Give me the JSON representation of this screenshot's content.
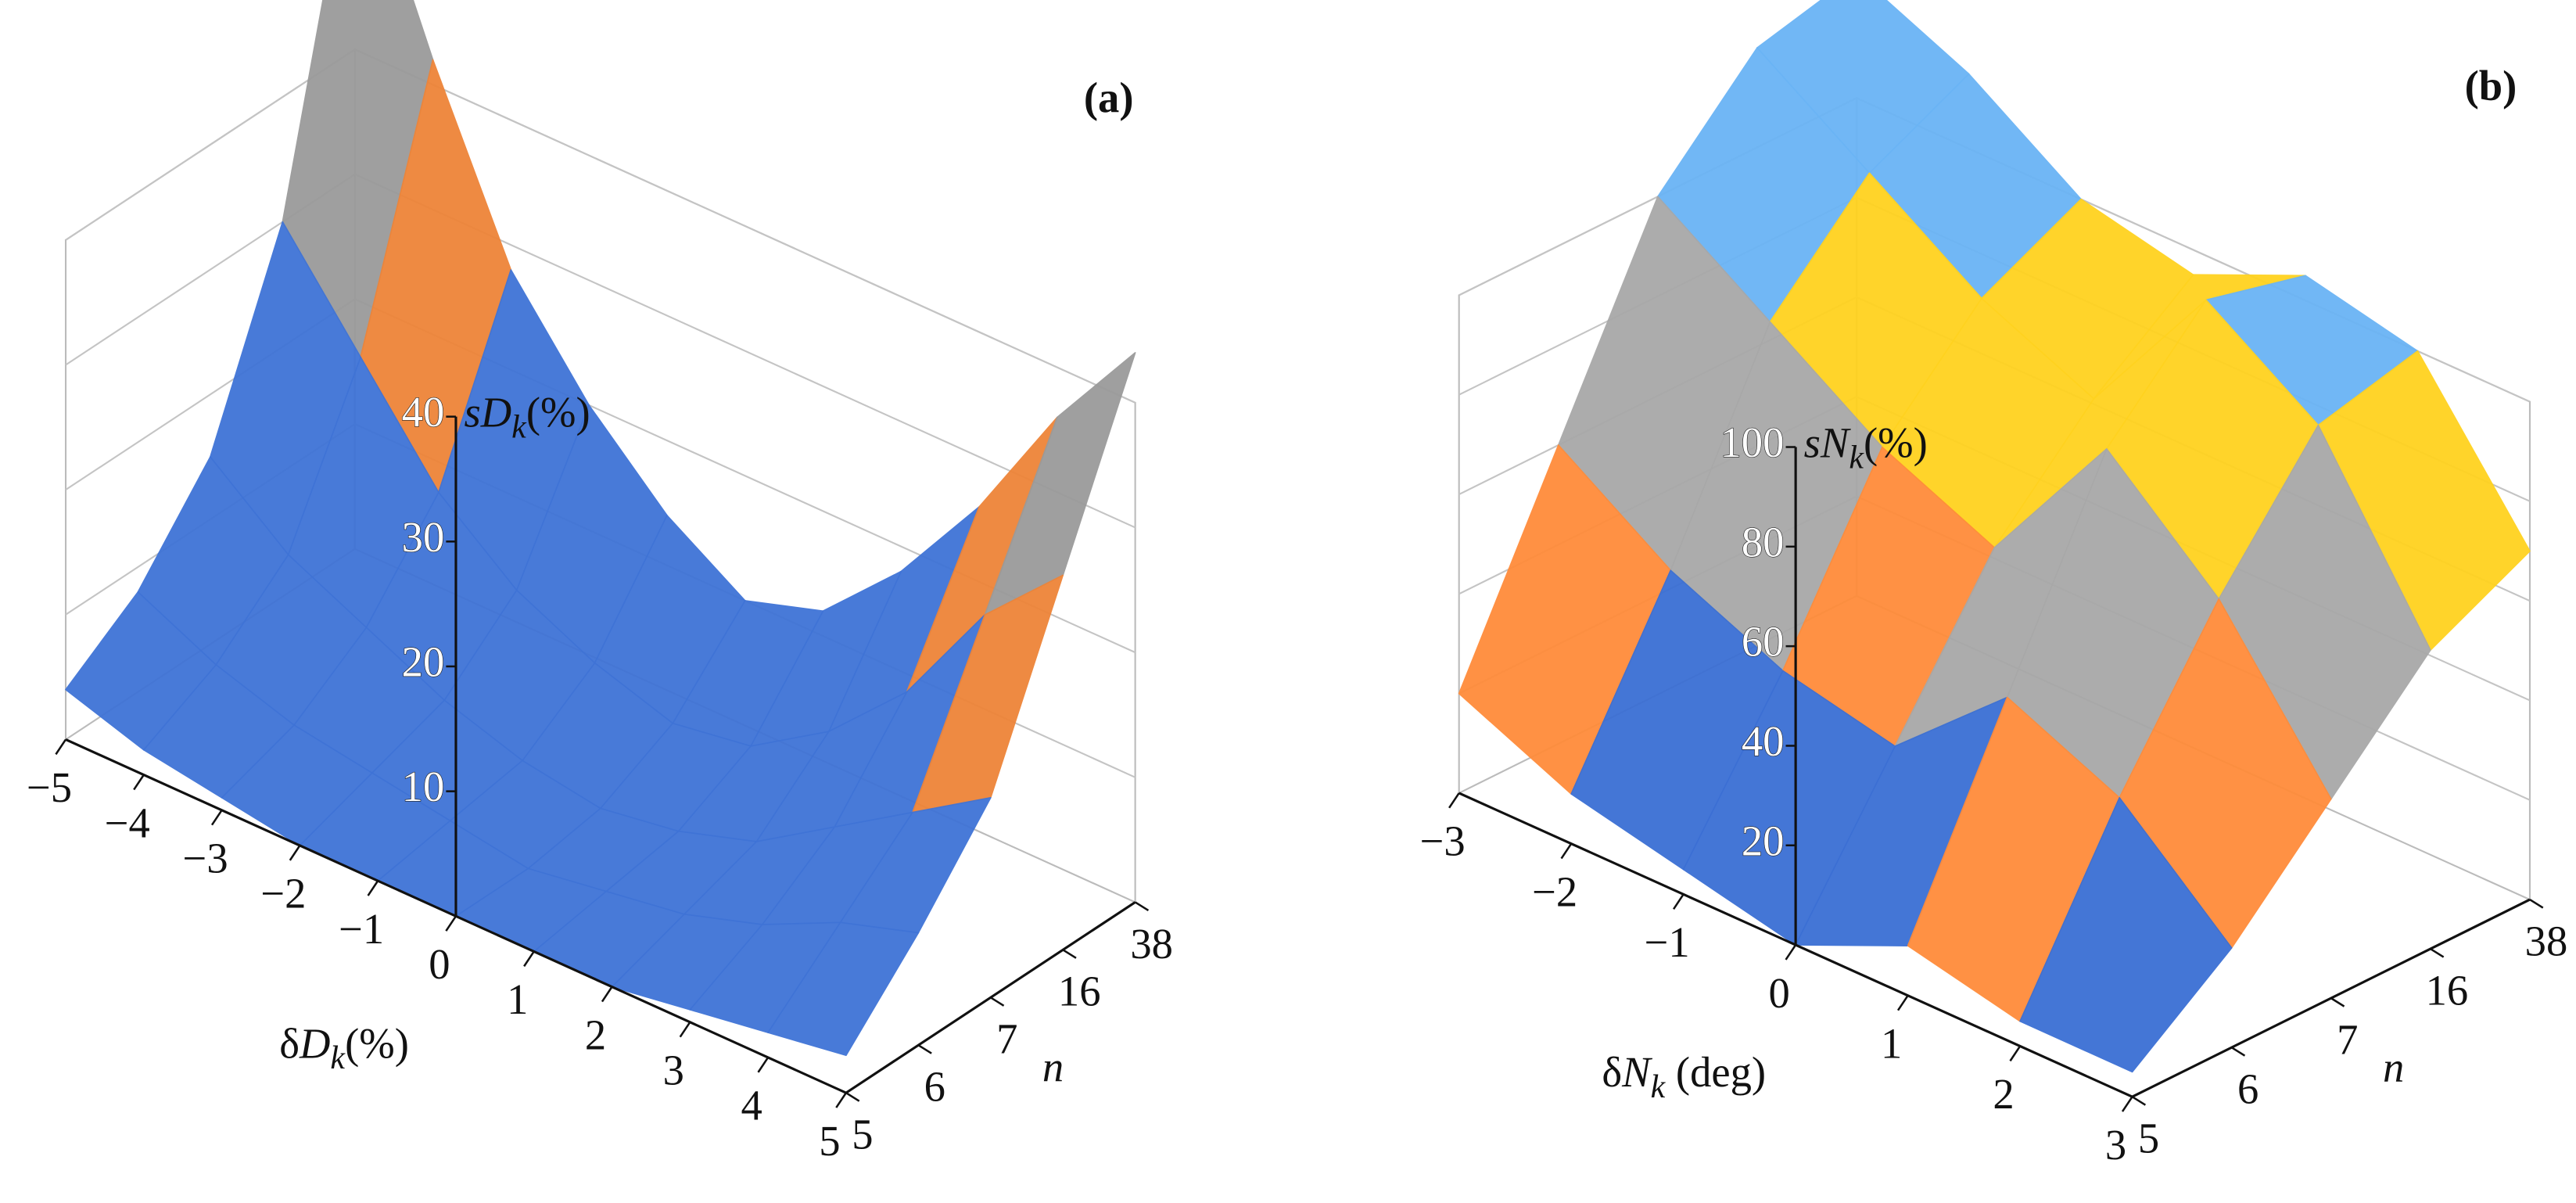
{
  "chart_data": [
    {
      "type": "surface3d",
      "panel_label": "(a)",
      "xlabel": [
        "δ",
        "D",
        "k",
        "(%)"
      ],
      "ylabel": "n",
      "zlabel": [
        "s",
        "D",
        "k",
        "(%)"
      ],
      "xticks": [
        {
          "value": -5,
          "label": "−5"
        },
        {
          "value": -4,
          "label": "−4"
        },
        {
          "value": -3,
          "label": "−3"
        },
        {
          "value": -2,
          "label": "−2"
        },
        {
          "value": -1,
          "label": "−1"
        },
        0,
        1,
        2,
        3,
        4,
        5
      ],
      "categories": [
        "5",
        "6",
        "7",
        "16",
        "38"
      ],
      "zlim": [
        0,
        40
      ],
      "zticks": [
        10,
        20,
        30,
        40
      ],
      "z": [
        [
          4,
          2,
          1,
          0,
          0,
          0,
          0,
          0,
          1,
          2,
          3
        ],
        [
          8,
          5,
          3,
          2,
          1,
          0,
          1,
          2,
          4,
          7,
          9
        ],
        [
          15,
          10,
          7,
          4,
          2,
          1,
          2,
          4,
          8,
          12,
          16
        ],
        [
          30,
          22,
          14,
          9,
          6,
          4,
          5,
          9,
          15,
          24,
          30
        ],
        [
          58,
          42,
          28,
          20,
          14,
          10,
          12,
          18,
          26,
          36,
          44
        ]
      ],
      "colors": [
        "#3f73d6",
        "#3f73d6",
        "#ee8438",
        "#9a9a9a",
        "#dfa800"
      ]
    },
    {
      "type": "surface3d",
      "panel_label": "(b)",
      "xlabel": [
        "δ",
        "N",
        "k",
        " (deg)"
      ],
      "ylabel": "n",
      "zlabel": [
        "s",
        "N",
        "k",
        "(%)"
      ],
      "xticks": [
        {
          "value": -3,
          "label": "−3"
        },
        {
          "value": -2,
          "label": "−2"
        },
        {
          "value": -1,
          "label": "−1"
        },
        0,
        1,
        2,
        3
      ],
      "categories": [
        "5",
        "6",
        "7",
        "16",
        "38"
      ],
      "zlim": [
        0,
        100
      ],
      "zticks": [
        20,
        40,
        60,
        80,
        100
      ],
      "z": [
        [
          20,
          10,
          5,
          0,
          10,
          5,
          5
        ],
        [
          60,
          45,
          35,
          30,
          50,
          40,
          20
        ],
        [
          100,
          85,
          70,
          60,
          90,
          70,
          40
        ],
        [
          120,
          105,
          90,
          80,
          110,
          95,
          60
        ],
        [
          125,
          115,
          100,
          95,
          105,
          100,
          70
        ]
      ],
      "colors": [
        "#3b6fd4",
        "#ff8c3a",
        "#a8a8a8",
        "#ffd21f",
        "#6ab4f5"
      ]
    }
  ]
}
